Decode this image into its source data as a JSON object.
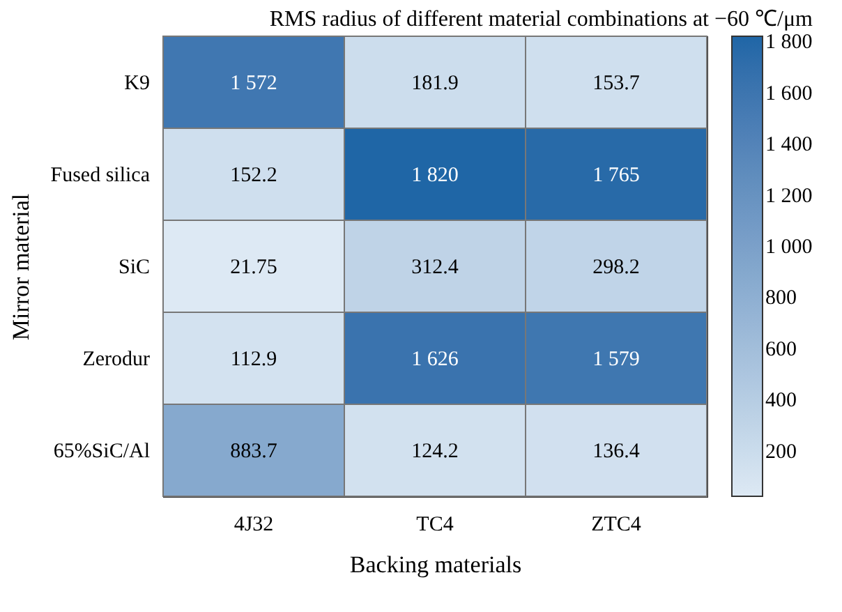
{
  "chart_data": {
    "type": "heatmap",
    "title": "RMS radius of different material combinations at −60 ℃/μm",
    "xlabel": "Backing materials",
    "ylabel": "Mirror material",
    "categories": [
      "4J32",
      "TC4",
      "ZTC4"
    ],
    "y_categories": [
      "K9",
      "Fused silica",
      "SiC",
      "Zerodur",
      "65%SiC/Al"
    ],
    "cells": [
      [
        1572,
        181.9,
        153.7
      ],
      [
        152.2,
        1820,
        1765
      ],
      [
        21.75,
        312.4,
        298.2
      ],
      [
        112.9,
        1626,
        1579
      ],
      [
        883.7,
        124.2,
        136.4
      ]
    ],
    "cell_labels": [
      [
        "1 572",
        "181.9",
        "153.7"
      ],
      [
        "152.2",
        "1 820",
        "1 765"
      ],
      [
        "21.75",
        "312.4",
        "298.2"
      ],
      [
        "112.9",
        "1 626",
        "1 579"
      ],
      [
        "883.7",
        "124.2",
        "136.4"
      ]
    ],
    "clim": [
      21.75,
      1820
    ],
    "cticks": [
      200,
      400,
      600,
      800,
      {
        "value": 1000,
        "label": "1 000"
      },
      {
        "value": 1200,
        "label": "1 200"
      },
      {
        "value": 1400,
        "label": "1 400"
      },
      {
        "value": 1600,
        "label": "1 600"
      },
      {
        "value": 1800,
        "label": "1 800"
      }
    ]
  }
}
